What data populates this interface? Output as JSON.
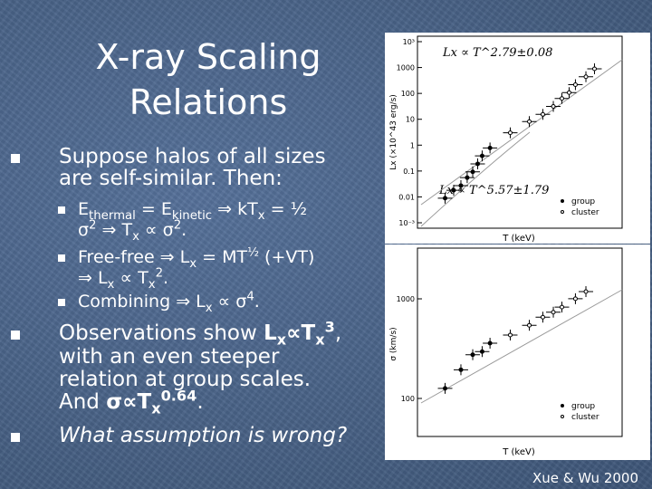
{
  "slide": {
    "title_line1": "X-ray Scaling",
    "title_line2": "Relations",
    "b1_line1": "Suppose halos of all sizes",
    "b1_line2": "are self-similar. Then:",
    "s1_E": "E",
    "s1_sub_thermal": "thermal",
    "s1_eq": " = E",
    "s1_sub_kinetic": "kinetic",
    "s1_rest": " ⇒ kT",
    "s1_sub_x": "x",
    "s1_end": " = ½",
    "s1b_sigma": "σ",
    "s1b_sup2": "2",
    "s1b_mid": " ⇒ T",
    "s1b_sub_x": "x",
    "s1b_prop": " ∝ σ",
    "s1b_sup2b": "2",
    "s1b_dot": ".",
    "s2_a": "Free-free ⇒ L",
    "s2_sub_x": "x",
    "s2_b": " = MT",
    "s2_sup_half": "½",
    "s2_c": " (+VT)",
    "s2b_a": "⇒ L",
    "s2b_sub_x": "x",
    "s2b_b": " ∝ T",
    "s2b_sub_x2": "x",
    "s2b_sup2": "2",
    "s2b_dot": ".",
    "s3_a": "Combining ⇒ L",
    "s3_sub_x": "x",
    "s3_b": " ∝ σ",
    "s3_sup4": "4",
    "s3_dot": ".",
    "b2_a": "Observations show ",
    "b2_L": "L",
    "b2_sub_x": "x",
    "b2_prop": "∝T",
    "b2_sub_x2": "x",
    "b2_sup3": "3",
    "b2_comma": ",",
    "b2_line2": "with an even steeper",
    "b2_line3": "relation at group scales.",
    "b2_line4a": "And ",
    "b2_sig": "σ∝T",
    "b2_sub_x3": "x",
    "b2_sup064": "0.64",
    "b2_line4end": ".",
    "b3": "What assumption is wrong?",
    "credit": "Xue & Wu 2000"
  },
  "charts": {
    "top": {
      "ylabel": "Lx (×10^43 erg/s)",
      "xlabel": "T (keV)",
      "formula_hi": "Lx ∝ T^2.79±0.08",
      "formula_lo": "Lx ∝ T^5.57±1.79",
      "yticks": [
        "10³",
        "1000",
        "100",
        "10",
        "1",
        "0.1",
        "0.01",
        "10⁻³"
      ],
      "legend": [
        "group",
        "cluster"
      ]
    },
    "bottom": {
      "ylabel": "σ (km/s)",
      "xlabel": "T (keV)",
      "yticks": [
        "1000",
        "100"
      ],
      "legend": [
        "group",
        "cluster"
      ]
    }
  },
  "chart_data": [
    {
      "type": "scatter",
      "title": "",
      "xlabel": "T (keV)",
      "ylabel": "Lx (×10^43 erg/s)",
      "log_x": true,
      "log_y": true,
      "xlim": [
        0.3,
        20
      ],
      "ylim": [
        0.001,
        10000
      ],
      "legend": "bottom-right",
      "annotations": [
        "Lx ∝ T^2.79±0.08",
        "Lx ∝ T^5.57±1.79"
      ],
      "series": [
        {
          "name": "group",
          "x": [
            0.5,
            0.6,
            0.7,
            0.8,
            0.9,
            1.0,
            1.1,
            1.3
          ],
          "y": [
            0.01,
            0.02,
            0.03,
            0.06,
            0.1,
            0.2,
            0.4,
            0.8
          ]
        },
        {
          "name": "cluster",
          "x": [
            2,
            3,
            4,
            5,
            6,
            7,
            8,
            10,
            12
          ],
          "y": [
            3,
            8,
            15,
            30,
            60,
            100,
            200,
            400,
            800
          ]
        }
      ]
    },
    {
      "type": "scatter",
      "title": "",
      "xlabel": "T (keV)",
      "ylabel": "σ (km/s)",
      "log_x": true,
      "log_y": true,
      "xlim": [
        0.3,
        20
      ],
      "ylim": [
        60,
        2500
      ],
      "legend": "bottom-right",
      "series": [
        {
          "name": "group",
          "x": [
            0.5,
            0.7,
            0.9,
            1.1,
            1.3
          ],
          "y": [
            150,
            220,
            300,
            320,
            380
          ]
        },
        {
          "name": "cluster",
          "x": [
            2,
            3,
            4,
            5,
            6,
            8,
            10
          ],
          "y": [
            450,
            550,
            650,
            720,
            800,
            950,
            1100
          ]
        }
      ]
    }
  ]
}
